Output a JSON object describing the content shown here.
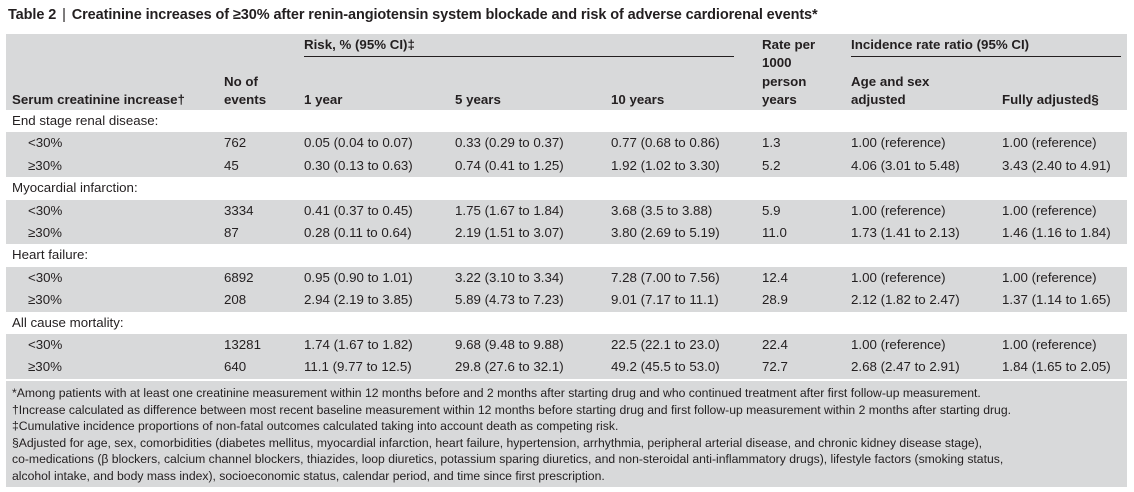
{
  "title": {
    "number": "Table 2",
    "separator": "|",
    "text": "Creatinine increases of ≥30% after renin-angiotensin system blockade and risk of adverse cardiorenal events*"
  },
  "header": {
    "serum": "Serum creatinine increase†",
    "events_l1": "No of",
    "events_l2": "events",
    "risk": "Risk, % (95% CI)‡",
    "y1": "1 year",
    "y5": "5 years",
    "y10": "10 years",
    "rate_l1": "Rate per",
    "rate_l2": "1000",
    "rate_l3": "person",
    "rate_l4": "years",
    "irr": "Incidence rate ratio (95% CI)",
    "age_l1": "Age and sex",
    "age_l2": "adjusted",
    "fully": "Fully adjusted§"
  },
  "sections": [
    {
      "label": "End stage renal disease:",
      "rows": [
        {
          "group": "<30%",
          "events": "762",
          "y1": "0.05 (0.04 to 0.07)",
          "y5": "0.33 (0.29 to 0.37)",
          "y10": "0.77 (0.68 to 0.86)",
          "rate": "1.3",
          "age": "1.00 (reference)",
          "fully": "1.00 (reference)"
        },
        {
          "group": "≥30%",
          "events": "45",
          "y1": "0.30 (0.13 to 0.63)",
          "y5": "0.74 (0.41 to 1.25)",
          "y10": "1.92 (1.02 to 3.30)",
          "rate": "5.2",
          "age": "4.06 (3.01 to 5.48)",
          "fully": "3.43 (2.40 to 4.91)"
        }
      ]
    },
    {
      "label": "Myocardial infarction:",
      "rows": [
        {
          "group": "<30%",
          "events": "3334",
          "y1": "0.41 (0.37 to 0.45)",
          "y5": "1.75 (1.67 to 1.84)",
          "y10": "3.68 (3.5 to 3.88)",
          "rate": "5.9",
          "age": "1.00 (reference)",
          "fully": "1.00 (reference)"
        },
        {
          "group": "≥30%",
          "events": "87",
          "y1": "0.28 (0.11 to 0.64)",
          "y5": "2.19 (1.51 to 3.07)",
          "y10": "3.80 (2.69 to 5.19)",
          "rate": "11.0",
          "age": "1.73 (1.41 to 2.13)",
          "fully": "1.46 (1.16 to 1.84)"
        }
      ]
    },
    {
      "label": "Heart failure:",
      "rows": [
        {
          "group": "<30%",
          "events": "6892",
          "y1": "0.95 (0.90 to 1.01)",
          "y5": "3.22 (3.10 to 3.34)",
          "y10": "7.28 (7.00 to 7.56)",
          "rate": "12.4",
          "age": "1.00 (reference)",
          "fully": "1.00 (reference)"
        },
        {
          "group": "≥30%",
          "events": "208",
          "y1": "2.94 (2.19 to 3.85)",
          "y5": "5.89 (4.73 to 7.23)",
          "y10": "9.01 (7.17 to 11.1)",
          "rate": "28.9",
          "age": "2.12 (1.82 to 2.47)",
          "fully": "1.37 (1.14 to 1.65)"
        }
      ]
    },
    {
      "label": "All cause mortality:",
      "rows": [
        {
          "group": "<30%",
          "events": "13281",
          "y1": "1.74 (1.67 to 1.82)",
          "y5": "9.68 (9.48 to 9.88)",
          "y10": "22.5 (22.1 to 23.0)",
          "rate": "22.4",
          "age": "1.00 (reference)",
          "fully": "1.00 (reference)"
        },
        {
          "group": "≥30%",
          "events": "640",
          "y1": "11.1 (9.77 to 12.5)",
          "y5": "29.8 (27.6 to 32.1)",
          "y10": "49.2 (45.5 to 53.0)",
          "rate": "72.7",
          "age": "2.68 (2.47 to 2.91)",
          "fully": "1.84 (1.65 to 2.05)"
        }
      ]
    }
  ],
  "footnotes": [
    "*Among patients with at least one creatinine measurement within 12 months before and 2 months after starting drug and who continued treatment after first follow-up measurement.",
    "†Increase calculated as difference between most recent baseline measurement within 12 months before starting drug and first follow-up measurement within 2 months after starting drug.",
    "‡Cumulative incidence proportions of non-fatal outcomes calculated taking into account death as competing risk.",
    "§Adjusted for age, sex, comorbidities (diabetes mellitus, myocardial infarction, heart failure, hypertension, arrhythmia, peripheral arterial disease, and chronic kidney disease stage),",
    "co-medications (β blockers, calcium channel blockers, thiazides, loop diuretics, potassium sparing diuretics, and non-steroidal anti-inflammatory drugs), lifestyle factors (smoking status,",
    "alcohol intake, and body mass index), socioeconomic status, calendar period, and time since first prescription."
  ]
}
